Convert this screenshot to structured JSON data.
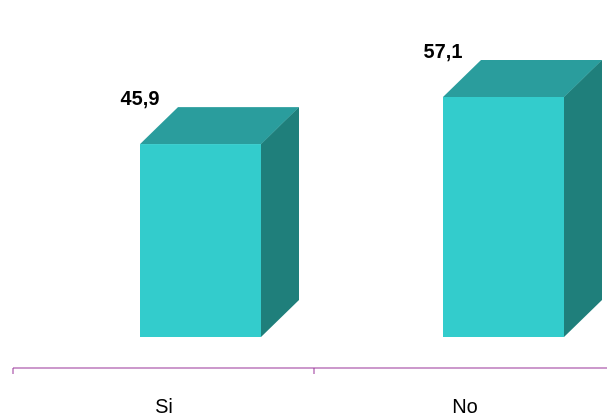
{
  "chart_data": {
    "type": "bar",
    "categories": [
      "Si",
      "No"
    ],
    "values": [
      45.9,
      57.1
    ],
    "value_labels": [
      "45,9",
      "57,1"
    ],
    "title": "",
    "xlabel": "",
    "ylabel": "",
    "ylim": [
      0,
      57.1
    ],
    "grid": false,
    "legend": "none",
    "style": "3d-column"
  },
  "colors": {
    "bar_front": "#33cccc",
    "bar_top": "#2a9d9d",
    "bar_side": "#1f7f7b",
    "axis": "#993399",
    "text": "#000000"
  }
}
